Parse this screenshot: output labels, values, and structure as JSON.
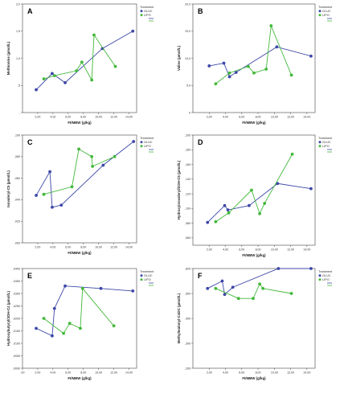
{
  "legend": {
    "title": "Treatment",
    "entries": [
      {
        "name": "GLUC",
        "color": "#3d47a8"
      },
      {
        "name": "LIPO",
        "color": "#42b83a"
      }
    ]
  },
  "colors": {
    "GLUC": "#3d47a8",
    "LIPO": "#42b83a",
    "axis": "#444444"
  },
  "chart_data": [
    {
      "type": "line",
      "panel": "A",
      "xlabel": "FI/MBW (g/kg)",
      "ylabel": "Methionine (µmol/L)",
      "xlim": [
        0,
        15
      ],
      "ylim": [
        0,
        2
      ],
      "xticks": [
        {
          "v": 2,
          "t": "2,00"
        },
        {
          "v": 4,
          "t": "4,00"
        },
        {
          "v": 6,
          "t": "6,00"
        },
        {
          "v": 8,
          "t": "8,00"
        },
        {
          "v": 10,
          "t": "10,00"
        },
        {
          "v": 12,
          "t": "12,00"
        },
        {
          "v": 14,
          "t": "14,00"
        }
      ],
      "yticks": [
        {
          "v": 0,
          "t": ","
        },
        {
          "v": 0.5,
          "t": ",5"
        },
        {
          "v": 1,
          "t": "1,0"
        },
        {
          "v": 1.5,
          "t": "1,5"
        },
        {
          "v": 2,
          "t": "2,0"
        }
      ],
      "series": [
        {
          "name": "GLUC",
          "x": [
            1.8,
            3.9,
            5.6,
            10.5,
            14.5
          ],
          "y": [
            0.42,
            0.72,
            0.55,
            1.18,
            1.5
          ]
        },
        {
          "name": "LIPO",
          "x": [
            2.8,
            4.2,
            7.1,
            7.8,
            9.1,
            9.4,
            12.2
          ],
          "y": [
            0.62,
            0.68,
            0.77,
            0.93,
            0.6,
            1.43,
            0.85
          ]
        }
      ]
    },
    {
      "type": "line",
      "panel": "B",
      "xlabel": "FI/MBW (g/kg)",
      "ylabel": "Valine (µmol/L)",
      "xlim": [
        0,
        15
      ],
      "ylim": [
        0,
        20
      ],
      "xticks": [
        {
          "v": 2,
          "t": "2,00"
        },
        {
          "v": 4,
          "t": "4,00"
        },
        {
          "v": 6,
          "t": "6,00"
        },
        {
          "v": 8,
          "t": "8,00"
        },
        {
          "v": 10,
          "t": "10,00"
        },
        {
          "v": 12,
          "t": "12,00"
        },
        {
          "v": 14,
          "t": "14,00"
        }
      ],
      "yticks": [
        {
          "v": 0,
          "t": "0"
        },
        {
          "v": 5,
          "t": "5,0"
        },
        {
          "v": 10,
          "t": "10,0"
        },
        {
          "v": 15,
          "t": "15,0"
        },
        {
          "v": 20,
          "t": "20,0"
        }
      ],
      "series": [
        {
          "name": "GLUC",
          "x": [
            2.0,
            3.8,
            4.5,
            5.3,
            10.3,
            14.5
          ],
          "y": [
            8.6,
            9.1,
            6.6,
            7.4,
            12.1,
            10.4
          ]
        },
        {
          "name": "LIPO",
          "x": [
            2.8,
            4.5,
            6.8,
            7.5,
            9.0,
            9.6,
            12.1
          ],
          "y": [
            5.3,
            7.3,
            8.5,
            7.3,
            8.0,
            16.0,
            6.9
          ]
        }
      ]
    },
    {
      "type": "line",
      "panel": "C",
      "xlabel": "FI/MBW (g/kg)",
      "ylabel": "Isovaleryl-C5 (µmol/L)",
      "xlim": [
        0,
        15
      ],
      "ylim": [
        0,
        0.1
      ],
      "xticks": [
        {
          "v": 2,
          "t": "2,00"
        },
        {
          "v": 4,
          "t": "4,00"
        },
        {
          "v": 6,
          "t": "6,00"
        },
        {
          "v": 8,
          "t": "8,00"
        },
        {
          "v": 10,
          "t": "10,00"
        },
        {
          "v": 12,
          "t": "12,00"
        },
        {
          "v": 14,
          "t": "14,00"
        }
      ],
      "yticks": [
        {
          "v": 0,
          "t": ",000"
        },
        {
          "v": 0.02,
          "t": ",020"
        },
        {
          "v": 0.04,
          "t": ",040"
        },
        {
          "v": 0.06,
          "t": ",060"
        },
        {
          "v": 0.08,
          "t": ",080"
        },
        {
          "v": 0.1,
          "t": ",100"
        }
      ],
      "series": [
        {
          "name": "GLUC",
          "x": [
            1.8,
            3.6,
            3.9,
            5.1,
            10.6,
            14.6
          ],
          "y": [
            0.044,
            0.066,
            0.033,
            0.035,
            0.072,
            0.094
          ]
        },
        {
          "name": "LIPO",
          "x": [
            2.8,
            6.5,
            7.4,
            9.1,
            9.2,
            12.1
          ],
          "y": [
            0.045,
            0.052,
            0.087,
            0.08,
            0.071,
            0.08
          ]
        }
      ]
    },
    {
      "type": "line",
      "panel": "D",
      "xlabel": "FI/MBW (g/kg)",
      "ylabel": "Hydroxyisovaleryl/2OH-C5 (µmol/L)",
      "xlim": [
        0,
        15
      ],
      "ylim": [
        0.05,
        0.2
      ],
      "xticks": [
        {
          "v": 2,
          "t": "2,00"
        },
        {
          "v": 4,
          "t": "4,00"
        },
        {
          "v": 6,
          "t": "6,00"
        },
        {
          "v": 8,
          "t": "8,00"
        },
        {
          "v": 10,
          "t": "10,00"
        },
        {
          "v": 12,
          "t": "12,00"
        },
        {
          "v": 14,
          "t": "14,00"
        }
      ],
      "yticks": [
        {
          "v": 0.06,
          "t": ",060"
        },
        {
          "v": 0.08,
          "t": ",080"
        },
        {
          "v": 0.1,
          "t": ",100"
        },
        {
          "v": 0.12,
          "t": ",120"
        },
        {
          "v": 0.14,
          "t": ",140"
        },
        {
          "v": 0.16,
          "t": ",160"
        },
        {
          "v": 0.18,
          "t": ",180"
        },
        {
          "v": 0.2,
          "t": ",200"
        }
      ],
      "series": [
        {
          "name": "GLUC",
          "x": [
            1.8,
            3.9,
            4.3,
            6.9,
            10.4,
            14.5
          ],
          "y": [
            0.081,
            0.104,
            0.098,
            0.104,
            0.134,
            0.127
          ]
        },
        {
          "name": "LIPO",
          "x": [
            2.8,
            4.4,
            7.2,
            8.2,
            8.8,
            12.2
          ],
          "y": [
            0.082,
            0.094,
            0.125,
            0.093,
            0.107,
            0.174
          ]
        }
      ]
    },
    {
      "type": "line",
      "panel": "E",
      "xlabel": "FI/MBW (g/kg)",
      "ylabel": "Hydroxybutyryl/3OH-C4 (µmol/L)",
      "xlim": [
        0,
        15
      ],
      "ylim": [
        0,
        0.04
      ],
      "xticks": [
        {
          "v": 0,
          "t": ",00"
        },
        {
          "v": 2,
          "t": "2,00"
        },
        {
          "v": 4,
          "t": "4,00"
        },
        {
          "v": 6,
          "t": "6,00"
        },
        {
          "v": 8,
          "t": "8,00"
        },
        {
          "v": 10,
          "t": "10,00"
        },
        {
          "v": 12,
          "t": "12,00"
        },
        {
          "v": 14,
          "t": "14,00"
        }
      ],
      "yticks": [
        {
          "v": 0,
          "t": ",0000"
        },
        {
          "v": 0.005,
          "t": ",0050"
        },
        {
          "v": 0.01,
          "t": ",0100"
        },
        {
          "v": 0.015,
          "t": ",0150"
        },
        {
          "v": 0.02,
          "t": ",0200"
        },
        {
          "v": 0.025,
          "t": ",0250"
        },
        {
          "v": 0.03,
          "t": ",0300"
        },
        {
          "v": 0.035,
          "t": ",0350"
        },
        {
          "v": 0.04,
          "t": ",0400"
        }
      ],
      "series": [
        {
          "name": "GLUC",
          "x": [
            1.8,
            3.9,
            4.2,
            5.6,
            10.3,
            14.5
          ],
          "y": [
            0.016,
            0.013,
            0.024,
            0.033,
            0.032,
            0.031
          ]
        },
        {
          "name": "LIPO",
          "x": [
            2.8,
            5.4,
            6.2,
            7.6,
            7.9,
            12.0
          ],
          "y": [
            0.02,
            0.014,
            0.018,
            0.016,
            0.032,
            0.017
          ]
        }
      ]
    },
    {
      "type": "line",
      "panel": "F",
      "xlabel": "FI/MBW (g/kg)",
      "ylabel": "Methylmalonyl-C4DC (µmol/L)",
      "xlim": [
        0,
        15
      ],
      "ylim": [
        0.2,
        0.6
      ],
      "xticks": [
        {
          "v": 2,
          "t": "2,00"
        },
        {
          "v": 4,
          "t": "4,00"
        },
        {
          "v": 6,
          "t": "6,00"
        },
        {
          "v": 8,
          "t": "8,00"
        },
        {
          "v": 10,
          "t": "10,00"
        },
        {
          "v": 12,
          "t": "12,00"
        },
        {
          "v": 14,
          "t": "14,00"
        }
      ],
      "yticks": [
        {
          "v": 0.2,
          "t": ",200"
        },
        {
          "v": 0.3,
          "t": ",300"
        },
        {
          "v": 0.4,
          "t": ",400"
        },
        {
          "v": 0.5,
          "t": ",500"
        },
        {
          "v": 0.6,
          "t": ",600"
        }
      ],
      "series": [
        {
          "name": "GLUC",
          "x": [
            1.8,
            3.6,
            3.9,
            4.9,
            10.5,
            14.5
          ],
          "y": [
            0.52,
            0.55,
            0.496,
            0.525,
            0.6,
            0.6
          ]
        },
        {
          "name": "LIPO",
          "x": [
            2.8,
            5.6,
            7.4,
            8.2,
            8.6,
            12.1
          ],
          "y": [
            0.52,
            0.48,
            0.48,
            0.538,
            0.52,
            0.5
          ]
        }
      ]
    }
  ]
}
